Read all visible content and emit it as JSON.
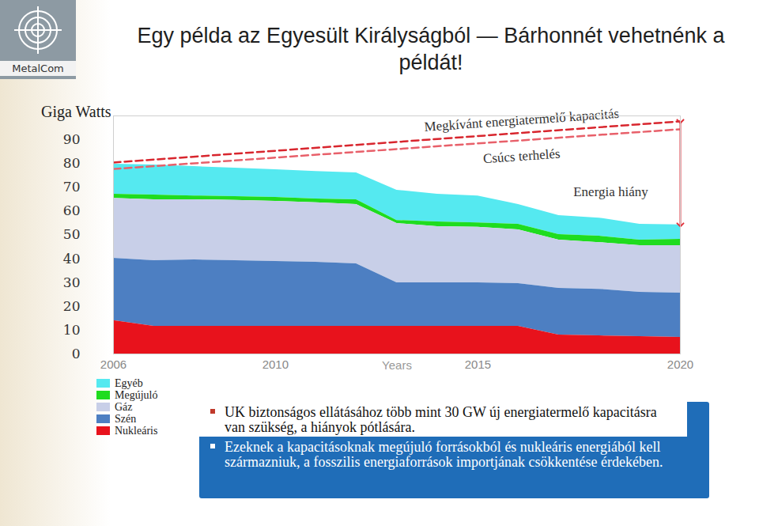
{
  "page": {
    "logo": "MetalCom",
    "bullets": [
      "UK biztonságos ellátásához több mint 30 GW új energiatermelő kapacitásra van szükség, a hiányok pótlására.",
      "Ezeknek a kapacitásoknak megújuló forrásokból és nukleáris energiából kell származniuk, a fosszilis energiaforrások importjának csökkentése érdekében."
    ]
  },
  "chart_data": {
    "type": "area",
    "stacked": true,
    "title": "Egy példa az Egyesült Királyságból — Bárhonnét vehetnénk a példát!",
    "xlabel": "Years",
    "ylabel": "Giga Watts",
    "x": [
      2006,
      2007,
      2008,
      2009,
      2010,
      2011,
      2012,
      2013,
      2014,
      2015,
      2016,
      2017,
      2018,
      2019,
      2020
    ],
    "xlim": [
      2006,
      2020
    ],
    "xticks": [
      2006,
      2010,
      2015,
      2020
    ],
    "ylim": [
      0,
      100
    ],
    "yticks": [
      0,
      10,
      20,
      30,
      40,
      50,
      60,
      70,
      80,
      90
    ],
    "legend": "bottom left",
    "series": [
      {
        "name": "Egyéb",
        "color": "#55e9f0",
        "values": [
          12.6,
          12.6,
          12.3,
          12.0,
          11.6,
          11.6,
          11.3,
          12.7,
          11.6,
          11.3,
          8.3,
          7.9,
          7.6,
          6.7,
          6.0
        ]
      },
      {
        "name": "Megújuló",
        "color": "#1fdc1f",
        "values": [
          1.7,
          2.0,
          1.6,
          1.6,
          1.7,
          1.6,
          2.0,
          1.3,
          2.0,
          1.9,
          2.3,
          2.4,
          2.7,
          2.3,
          2.7
        ]
      },
      {
        "name": "Gáz",
        "color": "#c8cfe8",
        "values": [
          25.2,
          25.6,
          25.3,
          25.3,
          25.2,
          25.0,
          24.9,
          24.9,
          23.6,
          23.3,
          22.6,
          20.2,
          19.6,
          19.6,
          19.9
        ]
      },
      {
        "name": "Szén",
        "color": "#4d7fc2",
        "values": [
          26.2,
          27.6,
          27.9,
          27.6,
          27.3,
          26.9,
          26.3,
          18.3,
          18.3,
          18.3,
          18.0,
          19.6,
          19.6,
          18.6,
          18.6
        ]
      },
      {
        "name": "Nukleáris",
        "color": "#e8121c",
        "values": [
          14.0,
          11.6,
          11.6,
          11.6,
          11.6,
          11.6,
          11.6,
          11.6,
          11.6,
          11.6,
          11.6,
          8.0,
          7.6,
          7.3,
          7.0
        ]
      },
      {
        "name": "Megkívánt energiatermelő kapacitás",
        "type": "line",
        "line_style": "dashed",
        "color": "#d8262e",
        "x": [
          2006,
          2020
        ],
        "values": [
          80.4,
          97.7
        ]
      },
      {
        "name": "Csúcs terhelés",
        "type": "line",
        "line_style": "dashed",
        "color": "#e8606a",
        "x": [
          2006,
          2020
        ],
        "values": [
          77.7,
          94.4
        ]
      }
    ],
    "annotations": [
      "Energia hiány"
    ]
  }
}
